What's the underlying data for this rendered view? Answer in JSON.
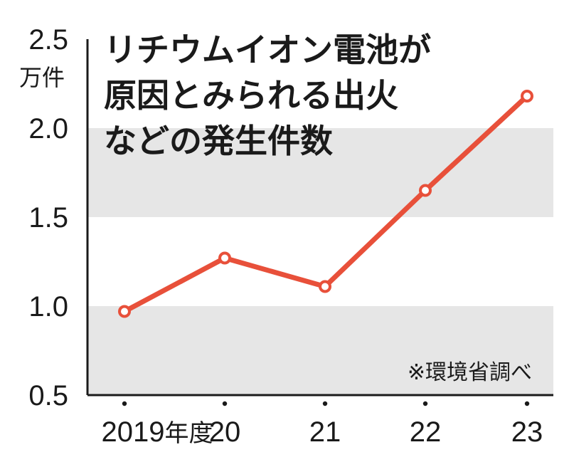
{
  "chart_data": {
    "type": "line",
    "title_lines": [
      "リチウムイオン電池が",
      "原因とみられる出火",
      "などの発生件数"
    ],
    "unit_label": "万件",
    "categories": [
      "2019年度",
      "20",
      "21",
      "22",
      "23"
    ],
    "values": [
      0.97,
      1.27,
      1.11,
      1.65,
      2.18
    ],
    "ylim": [
      0.5,
      2.5
    ],
    "yticks": [
      "0.5",
      "1.0",
      "1.5",
      "2.0",
      "2.5"
    ],
    "source": "※環境省調べ",
    "colors": {
      "line": "#e8503a",
      "band": "#e6e6e6",
      "axis": "#1a1a1a"
    }
  }
}
